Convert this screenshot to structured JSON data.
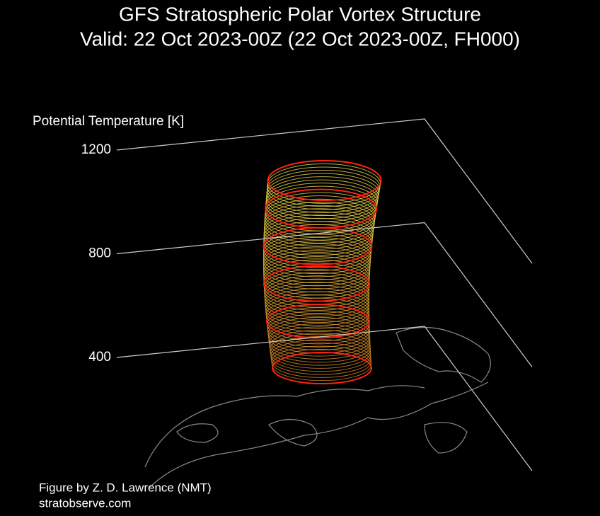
{
  "chart_data": {
    "type": "vortex3d",
    "title": "GFS Stratospheric Polar Vortex Structure",
    "subtitle": "Valid: 22 Oct 2023-00Z  (22 Oct 2023-00Z, FH000)",
    "zlabel": "Potential Temperature [K]",
    "zlim": [
      400,
      1200
    ],
    "zticks": [
      400,
      800,
      1200
    ],
    "credit": "Figure by Z. D. Lawrence (NMT)",
    "source": "stratobserve.com"
  }
}
